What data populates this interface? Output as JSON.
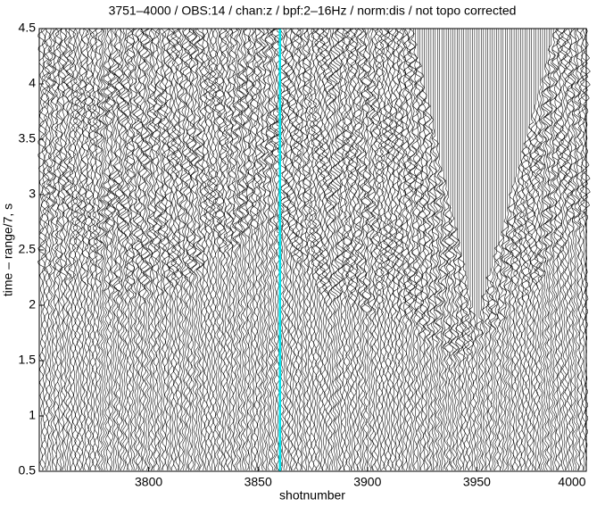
{
  "chart_data": {
    "type": "seismic",
    "title": "3751–4000 / OBS:14 / chan:z / bpf:2–16Hz / norm:dis / not topo corrected",
    "x_label": "shotnumber",
    "y_label": "time – range/7, s",
    "xlim": [
      3750,
      4000
    ],
    "ylim": [
      0.5,
      4.5
    ],
    "xticks": [
      3800,
      3850,
      3900,
      3950,
      4000
    ],
    "yticks": [
      0.5,
      1,
      1.5,
      2,
      2.5,
      3,
      3.5,
      4,
      4.5
    ],
    "highlight_trace": {
      "x": 3860,
      "color": "#00e5ee"
    }
  }
}
